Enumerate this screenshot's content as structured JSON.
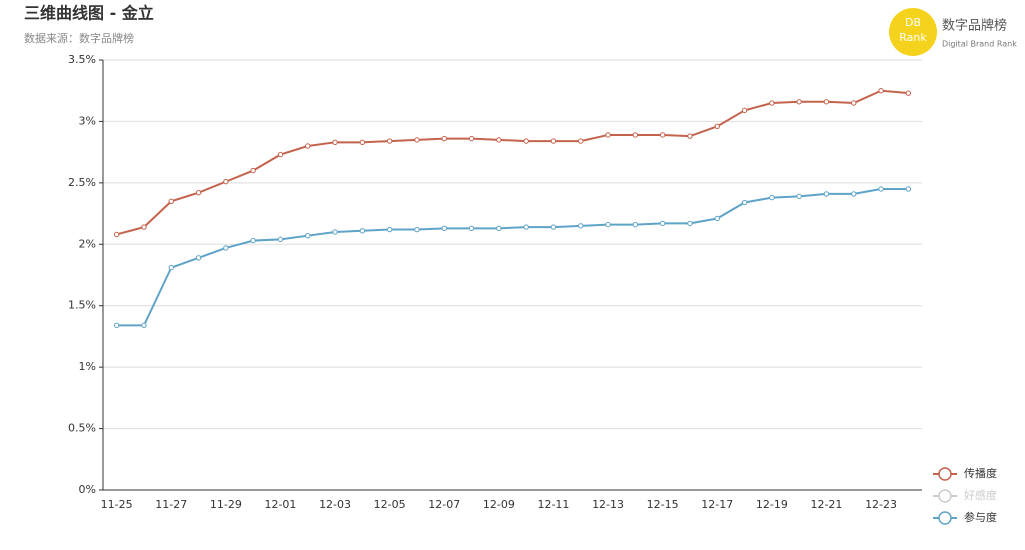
{
  "chart_data": {
    "type": "line",
    "title": "三维曲线图 - 金立",
    "subtitle": "数据来源：数字品牌榜",
    "logo": {
      "badge_top": "DB",
      "badge_bottom": "Rank",
      "name": "数字品牌榜",
      "tagline": "Digital Brand Rank"
    },
    "categories": [
      "11-25",
      null,
      "11-27",
      null,
      "11-29",
      null,
      "12-01",
      null,
      "12-03",
      null,
      "12-05",
      null,
      "12-07",
      null,
      "12-09",
      null,
      "12-11",
      null,
      "12-13",
      null,
      "12-15",
      null,
      "12-17",
      null,
      "12-19",
      null,
      "12-21",
      null,
      "12-23",
      null
    ],
    "series": [
      {
        "name": "传播度",
        "color": "#c4624c",
        "visible": true,
        "values": [
          2.08,
          2.14,
          2.35,
          2.42,
          2.51,
          2.6,
          2.73,
          2.8,
          2.83,
          2.83,
          2.84,
          2.85,
          2.86,
          2.86,
          2.85,
          2.84,
          2.84,
          2.84,
          2.89,
          2.89,
          2.89,
          2.88,
          2.96,
          3.09,
          3.15,
          3.16,
          3.16,
          3.15,
          3.25,
          3.23
        ]
      },
      {
        "name": "好感度",
        "color": "#cccccc",
        "visible": false,
        "values": [
          null,
          null,
          null,
          null,
          null,
          null,
          null,
          null,
          null,
          null,
          null,
          null,
          null,
          null,
          null,
          null,
          null,
          null,
          null,
          null,
          null,
          null,
          null,
          null,
          null,
          null,
          null,
          null,
          null,
          null
        ]
      },
      {
        "name": "参与度",
        "color": "#5ea3c8",
        "visible": true,
        "values": [
          1.34,
          1.34,
          1.81,
          1.89,
          1.97,
          2.03,
          2.04,
          2.07,
          2.1,
          2.11,
          2.12,
          2.12,
          2.13,
          2.13,
          2.13,
          2.14,
          2.14,
          2.15,
          2.16,
          2.16,
          2.17,
          2.17,
          2.21,
          2.34,
          2.38,
          2.39,
          2.41,
          2.41,
          2.45,
          2.45
        ]
      }
    ],
    "ylim": [
      0,
      3.5
    ],
    "yticks": [
      {
        "value": 0,
        "label": "0%"
      },
      {
        "value": 0.5,
        "label": "0.5%"
      },
      {
        "value": 1,
        "label": "1%"
      },
      {
        "value": 1.5,
        "label": "1.5%"
      },
      {
        "value": 2,
        "label": "2%"
      },
      {
        "value": 2.5,
        "label": "2.5%"
      },
      {
        "value": 3,
        "label": "3%"
      },
      {
        "value": 3.5,
        "label": "3.5%"
      }
    ],
    "grid": true,
    "legend_position": "bottom-right"
  }
}
